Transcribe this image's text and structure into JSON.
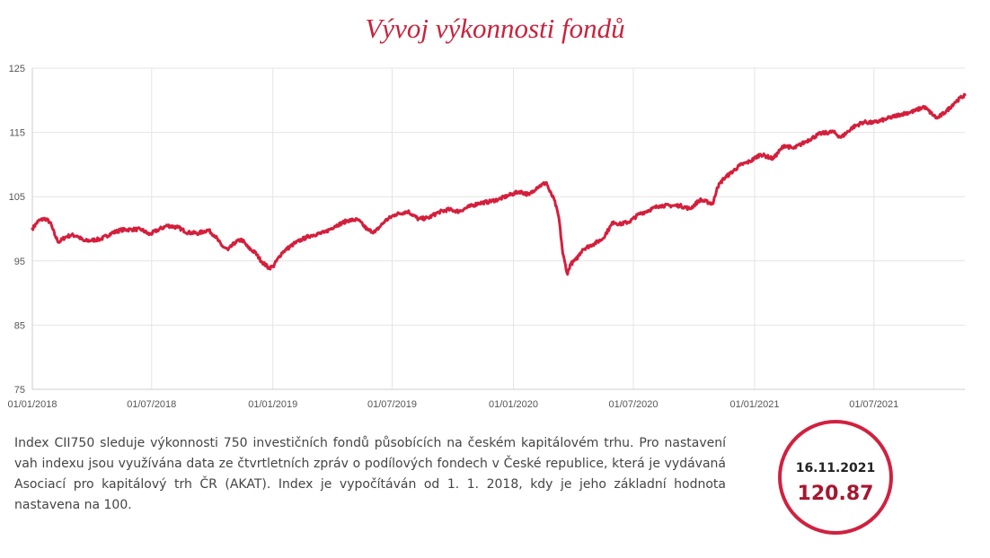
{
  "chart_data": {
    "type": "line",
    "title": "Vývoj výkonnosti fondů",
    "xlabel": "",
    "ylabel": "",
    "ylim": [
      75,
      125
    ],
    "y_ticks": [
      "75",
      "85",
      "95",
      "105",
      "115",
      "125"
    ],
    "x_ticks": [
      "01/01/2018",
      "01/07/2018",
      "01/01/2019",
      "01/07/2019",
      "01/01/2020",
      "01/07/2020",
      "01/01/2021",
      "01/07/2021"
    ],
    "x_range": [
      "2018-01-01",
      "2021-11-16"
    ],
    "grid": true,
    "color": "#d41f3c",
    "series": [
      {
        "name": "",
        "points": [
          [
            "2018-01-01",
            100.0
          ],
          [
            "2018-01-10",
            101.2
          ],
          [
            "2018-01-20",
            101.6
          ],
          [
            "2018-01-28",
            101.0
          ],
          [
            "2018-02-05",
            98.8
          ],
          [
            "2018-02-10",
            97.9
          ],
          [
            "2018-02-20",
            98.7
          ],
          [
            "2018-03-01",
            99.0
          ],
          [
            "2018-03-10",
            98.9
          ],
          [
            "2018-03-20",
            98.1
          ],
          [
            "2018-04-01",
            98.2
          ],
          [
            "2018-04-15",
            98.4
          ],
          [
            "2018-05-01",
            99.3
          ],
          [
            "2018-05-15",
            99.8
          ],
          [
            "2018-06-01",
            99.9
          ],
          [
            "2018-06-15",
            99.9
          ],
          [
            "2018-06-28",
            99.1
          ],
          [
            "2018-07-10",
            99.8
          ],
          [
            "2018-07-25",
            100.5
          ],
          [
            "2018-08-10",
            100.2
          ],
          [
            "2018-08-25",
            99.4
          ],
          [
            "2018-09-10",
            99.3
          ],
          [
            "2018-09-25",
            99.8
          ],
          [
            "2018-10-05",
            98.9
          ],
          [
            "2018-10-15",
            97.4
          ],
          [
            "2018-10-25",
            96.7
          ],
          [
            "2018-11-05",
            97.9
          ],
          [
            "2018-11-15",
            98.3
          ],
          [
            "2018-11-25",
            97.0
          ],
          [
            "2018-12-05",
            96.3
          ],
          [
            "2018-12-15",
            94.9
          ],
          [
            "2018-12-26",
            93.9
          ],
          [
            "2019-01-01",
            94.1
          ],
          [
            "2019-01-15",
            96.3
          ],
          [
            "2019-02-01",
            97.6
          ],
          [
            "2019-02-15",
            98.4
          ],
          [
            "2019-03-01",
            99.0
          ],
          [
            "2019-03-20",
            99.4
          ],
          [
            "2019-04-05",
            100.4
          ],
          [
            "2019-04-25",
            101.3
          ],
          [
            "2019-05-10",
            101.4
          ],
          [
            "2019-05-25",
            99.8
          ],
          [
            "2019-06-05",
            99.5
          ],
          [
            "2019-06-20",
            101.2
          ],
          [
            "2019-07-05",
            102.2
          ],
          [
            "2019-07-25",
            102.7
          ],
          [
            "2019-08-10",
            101.5
          ],
          [
            "2019-08-25",
            101.7
          ],
          [
            "2019-09-10",
            102.6
          ],
          [
            "2019-09-25",
            103.0
          ],
          [
            "2019-10-10",
            102.7
          ],
          [
            "2019-10-25",
            103.4
          ],
          [
            "2019-11-10",
            104.0
          ],
          [
            "2019-11-25",
            104.2
          ],
          [
            "2019-12-10",
            104.6
          ],
          [
            "2019-12-25",
            105.2
          ],
          [
            "2020-01-10",
            105.8
          ],
          [
            "2020-01-25",
            105.3
          ],
          [
            "2020-02-05",
            106.4
          ],
          [
            "2020-02-20",
            107.2
          ],
          [
            "2020-02-25",
            105.8
          ],
          [
            "2020-03-03",
            104.5
          ],
          [
            "2020-03-10",
            101.7
          ],
          [
            "2020-03-16",
            96.1
          ],
          [
            "2020-03-23",
            92.9
          ],
          [
            "2020-03-27",
            94.4
          ],
          [
            "2020-04-05",
            95.2
          ],
          [
            "2020-04-15",
            96.8
          ],
          [
            "2020-05-01",
            97.6
          ],
          [
            "2020-05-15",
            98.4
          ],
          [
            "2020-06-01",
            101.1
          ],
          [
            "2020-06-10",
            100.7
          ],
          [
            "2020-06-25",
            101.1
          ],
          [
            "2020-07-10",
            102.3
          ],
          [
            "2020-07-25",
            102.9
          ],
          [
            "2020-08-10",
            103.6
          ],
          [
            "2020-08-25",
            103.6
          ],
          [
            "2020-09-10",
            103.6
          ],
          [
            "2020-09-25",
            103.1
          ],
          [
            "2020-10-10",
            104.5
          ],
          [
            "2020-10-30",
            103.9
          ],
          [
            "2020-11-05",
            106.4
          ],
          [
            "2020-11-15",
            107.8
          ],
          [
            "2020-11-25",
            108.6
          ],
          [
            "2020-12-10",
            109.9
          ],
          [
            "2020-12-25",
            110.5
          ],
          [
            "2021-01-10",
            111.6
          ],
          [
            "2021-01-29",
            110.9
          ],
          [
            "2021-02-15",
            113.0
          ],
          [
            "2021-03-01",
            112.5
          ],
          [
            "2021-03-20",
            113.6
          ],
          [
            "2021-04-10",
            114.8
          ],
          [
            "2021-04-30",
            115.1
          ],
          [
            "2021-05-12",
            114.2
          ],
          [
            "2021-05-30",
            115.8
          ],
          [
            "2021-06-15",
            116.6
          ],
          [
            "2021-06-30",
            116.5
          ],
          [
            "2021-07-20",
            117.1
          ],
          [
            "2021-08-10",
            117.8
          ],
          [
            "2021-08-31",
            118.3
          ],
          [
            "2021-09-15",
            119.0
          ],
          [
            "2021-09-30",
            117.6
          ],
          [
            "2021-10-05",
            117.2
          ],
          [
            "2021-10-20",
            118.4
          ],
          [
            "2021-11-01",
            119.7
          ],
          [
            "2021-11-16",
            120.87
          ]
        ]
      }
    ]
  },
  "description": "Index CII750 sleduje výkonnosti 750 investičních fondů působících na českém kapitálovém trhu. Pro nastavení vah indexu jsou využívána data ze čtvrtletních zpráv o podílových fondech v České republice, která je vydávaná Asociací pro kapitálový trh ČR (AKAT). Index je vypočítáván od 1. 1. 2018, kdy je jeho základní hodnota nastavena na 100.",
  "latest": {
    "date": "16.11.2021",
    "value": "120.87"
  }
}
